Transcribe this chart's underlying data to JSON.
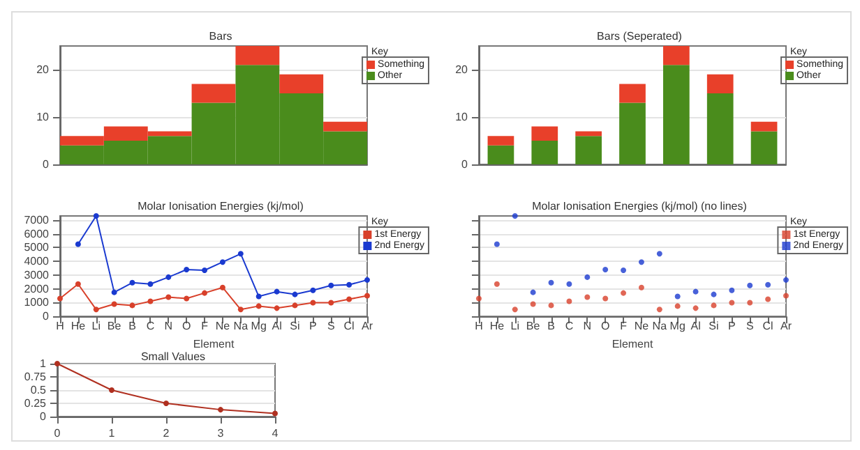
{
  "chart_data": [
    {
      "type": "bar",
      "title": "Bars",
      "legend_title": "Key",
      "legend": "top right",
      "stacked": true,
      "grid": "y",
      "categories": [
        null,
        null,
        null,
        null,
        null,
        null,
        null
      ],
      "ylim": [
        0,
        25
      ],
      "yticks": [
        0,
        10,
        20
      ],
      "series": [
        {
          "name": "Other",
          "color": "#4a8c1c",
          "values": [
            4,
            5,
            6,
            13,
            21,
            15,
            7
          ]
        },
        {
          "name": "Something",
          "color": "#e8402a",
          "values": [
            2,
            3,
            1,
            4,
            4,
            4,
            2
          ]
        }
      ]
    },
    {
      "type": "bar",
      "title": "Bars (Seperated)",
      "legend_title": "Key",
      "legend": "top right",
      "stacked": true,
      "grid": "y",
      "categories": [
        null,
        null,
        null,
        null,
        null,
        null,
        null
      ],
      "ylim": [
        0,
        25
      ],
      "yticks": [
        0,
        10,
        20
      ],
      "series": [
        {
          "name": "Other",
          "color": "#4a8c1c",
          "values": [
            4,
            5,
            6,
            13,
            21,
            15,
            7
          ]
        },
        {
          "name": "Something",
          "color": "#e8402a",
          "values": [
            2,
            3,
            1,
            4,
            4,
            4,
            2
          ]
        }
      ]
    },
    {
      "type": "line",
      "title": "Molar Ionisation Energies (kj/mol)",
      "xlabel": "Element",
      "legend_title": "Key",
      "legend": "top right",
      "grid": "y",
      "marker": "circle",
      "categories": [
        "H",
        "He",
        "Li",
        "Be",
        "B",
        "C",
        "N",
        "O",
        "F",
        "Ne",
        "Na",
        "Mg",
        "Al",
        "Si",
        "P",
        "S",
        "Cl",
        "Ar"
      ],
      "ylim": [
        0,
        7300
      ],
      "yticks": [
        0,
        1000,
        2000,
        3000,
        4000,
        5000,
        6000,
        7000
      ],
      "series": [
        {
          "name": "1st Energy",
          "color": "#d8402a",
          "values": [
            1300,
            2350,
            500,
            900,
            800,
            1100,
            1400,
            1300,
            1700,
            2100,
            500,
            750,
            600,
            800,
            1000,
            1000,
            1250,
            1500
          ]
        },
        {
          "name": "2nd Energy",
          "color": "#1a3ad0",
          "values": [
            null,
            5250,
            7300,
            1750,
            2450,
            2350,
            2850,
            3400,
            3350,
            3950,
            4550,
            1450,
            1800,
            1600,
            1900,
            2250,
            2300,
            2650
          ]
        }
      ]
    },
    {
      "type": "scatter",
      "title": "Molar Ionisation Energies (kj/mol) (no lines)",
      "xlabel": "Element",
      "legend_title": "Key",
      "legend": "top right",
      "grid": "y",
      "marker": "circle",
      "categories": [
        "H",
        "He",
        "Li",
        "Be",
        "B",
        "C",
        "N",
        "O",
        "F",
        "Ne",
        "Na",
        "Mg",
        "Al",
        "Si",
        "P",
        "S",
        "Cl",
        "Ar"
      ],
      "ylim": [
        0,
        7300
      ],
      "yticks": [
        0,
        1000,
        2000,
        3000,
        4000,
        5000,
        6000,
        7000
      ],
      "tick_labels": "x",
      "series": [
        {
          "name": "1st Energy",
          "color": "#d8402a",
          "values": [
            1300,
            2350,
            500,
            900,
            800,
            1100,
            1400,
            1300,
            1700,
            2100,
            500,
            750,
            600,
            800,
            1000,
            1000,
            1250,
            1500
          ]
        },
        {
          "name": "2nd Energy",
          "color": "#1a3ad0",
          "values": [
            null,
            5250,
            7300,
            1750,
            2450,
            2350,
            2850,
            3400,
            3350,
            3950,
            4550,
            1450,
            1800,
            1600,
            1900,
            2250,
            2300,
            2650
          ]
        }
      ]
    },
    {
      "type": "line",
      "title": "Small Values",
      "grid": "y",
      "marker": "circle",
      "x": [
        0,
        1,
        2,
        3,
        4
      ],
      "xlim": [
        0,
        4
      ],
      "xticks": [
        0,
        1,
        2,
        3,
        4
      ],
      "ylim": [
        0,
        1
      ],
      "yticks": [
        0,
        0.25,
        0.5,
        0.75,
        1
      ],
      "values": [
        1,
        0.5,
        0.25,
        0.13,
        0.06
      ],
      "color": "#b03020"
    }
  ]
}
